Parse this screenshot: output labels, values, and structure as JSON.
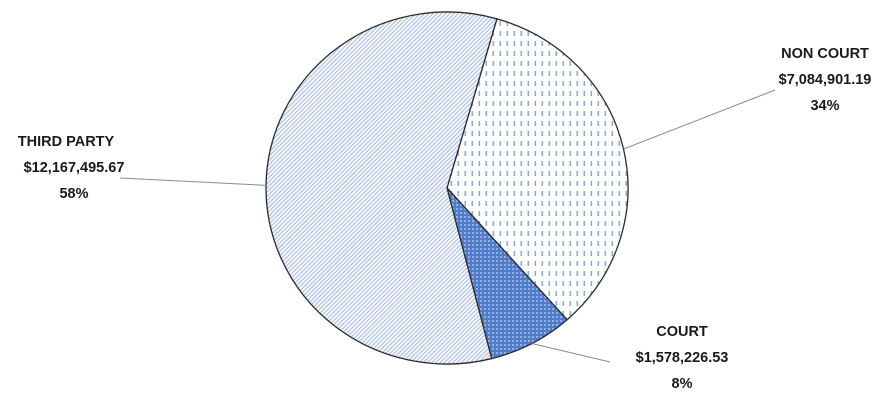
{
  "chart_data": {
    "type": "pie",
    "title": "",
    "slices": [
      {
        "label": "NON COURT",
        "amount": "$7,084,901.19",
        "percent_label": "34%",
        "value": 7084901.19,
        "color": "#9db7e0",
        "pattern": "dash"
      },
      {
        "label": "COURT",
        "amount": "$1,578,226.53",
        "percent_label": "8%",
        "value": 1578226.53,
        "color": "#4472c4",
        "pattern": "dots"
      },
      {
        "label": "THIRD PARTY",
        "amount": "$12,167,495.67",
        "percent_label": "58%",
        "value": 12167495.67,
        "color": "#c5d5ee",
        "pattern": "diag"
      }
    ],
    "legend": "none"
  }
}
